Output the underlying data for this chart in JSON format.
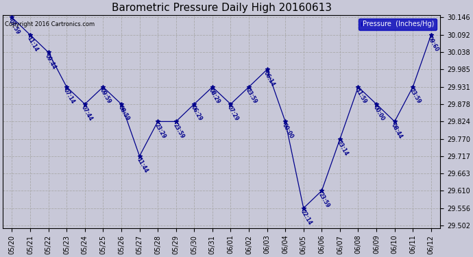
{
  "title": "Barometric Pressure Daily High 20160613",
  "ylabel": "Pressure  (Inches/Hg)",
  "copyright": "Copyright 2016 Cartronics.com",
  "bg_color": "#c8c8d8",
  "plot_bg": "#c8c8d8",
  "line_color": "#00008b",
  "legend_bg": "#0000bb",
  "legend_fg": "#ffffff",
  "ylim": [
    29.502,
    30.146
  ],
  "yticks": [
    29.502,
    29.556,
    29.61,
    29.663,
    29.717,
    29.77,
    29.824,
    29.878,
    29.931,
    29.985,
    30.038,
    30.092,
    30.146
  ],
  "dates": [
    "05/20",
    "05/21",
    "05/22",
    "05/23",
    "05/24",
    "05/25",
    "05/26",
    "05/27",
    "05/28",
    "05/29",
    "05/30",
    "05/31",
    "06/01",
    "06/02",
    "06/03",
    "06/04",
    "06/05",
    "06/06",
    "06/07",
    "06/08",
    "06/09",
    "06/10",
    "06/11",
    "06/12"
  ],
  "values": [
    30.146,
    30.092,
    30.038,
    29.931,
    29.878,
    29.931,
    29.878,
    29.717,
    29.824,
    29.824,
    29.878,
    29.931,
    29.878,
    29.931,
    29.985,
    29.824,
    29.556,
    29.61,
    29.77,
    29.931,
    29.878,
    29.824,
    29.931,
    30.092
  ],
  "times": [
    "07:59",
    "11:14",
    "09:44",
    "07:14",
    "07:44",
    "09:59",
    "08:59",
    "11:44",
    "23:29",
    "23:59",
    "06:29",
    "08:29",
    "07:29",
    "23:59",
    "06:14",
    "00:00",
    "22:14",
    "23:59",
    "23:14",
    "11:59",
    "00:00",
    "08:44",
    "23:59",
    "09:60"
  ],
  "title_fontsize": 11,
  "tick_fontsize": 7,
  "label_fontsize": 5.5,
  "figw": 6.9,
  "figh": 3.75,
  "dpi": 100
}
